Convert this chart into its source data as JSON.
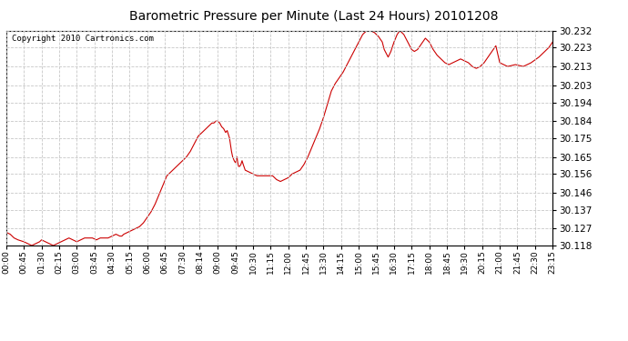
{
  "title": "Barometric Pressure per Minute (Last 24 Hours) 20101208",
  "copyright": "Copyright 2010 Cartronics.com",
  "line_color": "#cc0000",
  "background_color": "#ffffff",
  "grid_color": "#c8c8c8",
  "ylim": [
    30.118,
    30.232
  ],
  "yticks": [
    30.118,
    30.127,
    30.137,
    30.146,
    30.156,
    30.165,
    30.175,
    30.184,
    30.194,
    30.203,
    30.213,
    30.223,
    30.232
  ],
  "xtick_labels": [
    "00:00",
    "00:45",
    "01:30",
    "02:15",
    "03:00",
    "03:45",
    "04:30",
    "05:15",
    "06:00",
    "06:45",
    "07:30",
    "08:14",
    "09:00",
    "09:45",
    "10:30",
    "11:15",
    "12:00",
    "12:45",
    "13:30",
    "14:15",
    "15:00",
    "15:45",
    "16:30",
    "17:15",
    "18:00",
    "18:45",
    "19:30",
    "20:15",
    "21:00",
    "21:45",
    "22:30",
    "23:15"
  ],
  "xlim": [
    0,
    1395
  ],
  "data_points": [
    [
      0,
      30.125
    ],
    [
      10,
      30.124
    ],
    [
      20,
      30.122
    ],
    [
      30,
      30.121
    ],
    [
      45,
      30.12
    ],
    [
      55,
      30.119
    ],
    [
      65,
      30.118
    ],
    [
      75,
      30.119
    ],
    [
      85,
      30.12
    ],
    [
      90,
      30.121
    ],
    [
      100,
      30.12
    ],
    [
      110,
      30.119
    ],
    [
      120,
      30.118
    ],
    [
      130,
      30.119
    ],
    [
      140,
      30.12
    ],
    [
      150,
      30.121
    ],
    [
      160,
      30.122
    ],
    [
      170,
      30.121
    ],
    [
      180,
      30.12
    ],
    [
      190,
      30.121
    ],
    [
      200,
      30.122
    ],
    [
      210,
      30.122
    ],
    [
      220,
      30.122
    ],
    [
      230,
      30.121
    ],
    [
      240,
      30.122
    ],
    [
      250,
      30.122
    ],
    [
      260,
      30.122
    ],
    [
      270,
      30.123
    ],
    [
      280,
      30.124
    ],
    [
      290,
      30.123
    ],
    [
      295,
      30.123
    ],
    [
      300,
      30.124
    ],
    [
      310,
      30.125
    ],
    [
      320,
      30.126
    ],
    [
      330,
      30.127
    ],
    [
      340,
      30.128
    ],
    [
      350,
      30.13
    ],
    [
      360,
      30.133
    ],
    [
      370,
      30.136
    ],
    [
      380,
      30.14
    ],
    [
      390,
      30.145
    ],
    [
      400,
      30.15
    ],
    [
      410,
      30.155
    ],
    [
      420,
      30.157
    ],
    [
      430,
      30.159
    ],
    [
      440,
      30.161
    ],
    [
      450,
      30.163
    ],
    [
      460,
      30.165
    ],
    [
      470,
      30.168
    ],
    [
      480,
      30.172
    ],
    [
      490,
      30.176
    ],
    [
      500,
      30.178
    ],
    [
      510,
      30.18
    ],
    [
      515,
      30.181
    ],
    [
      520,
      30.182
    ],
    [
      525,
      30.183
    ],
    [
      530,
      30.183
    ],
    [
      535,
      30.184
    ],
    [
      540,
      30.184
    ],
    [
      545,
      30.183
    ],
    [
      550,
      30.181
    ],
    [
      555,
      30.18
    ],
    [
      560,
      30.178
    ],
    [
      564,
      30.179
    ],
    [
      570,
      30.175
    ],
    [
      575,
      30.168
    ],
    [
      578,
      30.165
    ],
    [
      582,
      30.163
    ],
    [
      585,
      30.162
    ],
    [
      587,
      30.163
    ],
    [
      589,
      30.165
    ],
    [
      591,
      30.162
    ],
    [
      593,
      30.16
    ],
    [
      596,
      30.16
    ],
    [
      599,
      30.161
    ],
    [
      602,
      30.163
    ],
    [
      605,
      30.161
    ],
    [
      610,
      30.158
    ],
    [
      620,
      30.157
    ],
    [
      630,
      30.156
    ],
    [
      640,
      30.155
    ],
    [
      650,
      30.155
    ],
    [
      660,
      30.155
    ],
    [
      670,
      30.155
    ],
    [
      680,
      30.155
    ],
    [
      690,
      30.153
    ],
    [
      700,
      30.152
    ],
    [
      710,
      30.153
    ],
    [
      720,
      30.154
    ],
    [
      730,
      30.156
    ],
    [
      740,
      30.157
    ],
    [
      750,
      30.158
    ],
    [
      760,
      30.161
    ],
    [
      770,
      30.165
    ],
    [
      780,
      30.17
    ],
    [
      790,
      30.175
    ],
    [
      800,
      30.18
    ],
    [
      810,
      30.186
    ],
    [
      820,
      30.193
    ],
    [
      830,
      30.2
    ],
    [
      840,
      30.204
    ],
    [
      850,
      30.207
    ],
    [
      860,
      30.21
    ],
    [
      870,
      30.214
    ],
    [
      880,
      30.218
    ],
    [
      890,
      30.222
    ],
    [
      900,
      30.226
    ],
    [
      910,
      30.23
    ],
    [
      920,
      30.232
    ],
    [
      930,
      30.232
    ],
    [
      940,
      30.231
    ],
    [
      950,
      30.229
    ],
    [
      960,
      30.226
    ],
    [
      965,
      30.222
    ],
    [
      970,
      30.22
    ],
    [
      975,
      30.218
    ],
    [
      982,
      30.221
    ],
    [
      990,
      30.226
    ],
    [
      998,
      30.23
    ],
    [
      1005,
      30.232
    ],
    [
      1015,
      30.23
    ],
    [
      1025,
      30.226
    ],
    [
      1035,
      30.222
    ],
    [
      1042,
      30.221
    ],
    [
      1050,
      30.222
    ],
    [
      1060,
      30.225
    ],
    [
      1070,
      30.228
    ],
    [
      1080,
      30.226
    ],
    [
      1090,
      30.222
    ],
    [
      1100,
      30.219
    ],
    [
      1110,
      30.217
    ],
    [
      1120,
      30.215
    ],
    [
      1130,
      30.214
    ],
    [
      1140,
      30.215
    ],
    [
      1150,
      30.216
    ],
    [
      1160,
      30.217
    ],
    [
      1170,
      30.216
    ],
    [
      1180,
      30.215
    ],
    [
      1190,
      30.213
    ],
    [
      1200,
      30.212
    ],
    [
      1210,
      30.213
    ],
    [
      1220,
      30.215
    ],
    [
      1230,
      30.218
    ],
    [
      1240,
      30.221
    ],
    [
      1250,
      30.224
    ],
    [
      1260,
      30.215
    ],
    [
      1280,
      30.213
    ],
    [
      1300,
      30.214
    ],
    [
      1320,
      30.213
    ],
    [
      1340,
      30.215
    ],
    [
      1360,
      30.218
    ],
    [
      1375,
      30.221
    ],
    [
      1385,
      30.223
    ],
    [
      1395,
      30.226
    ]
  ]
}
